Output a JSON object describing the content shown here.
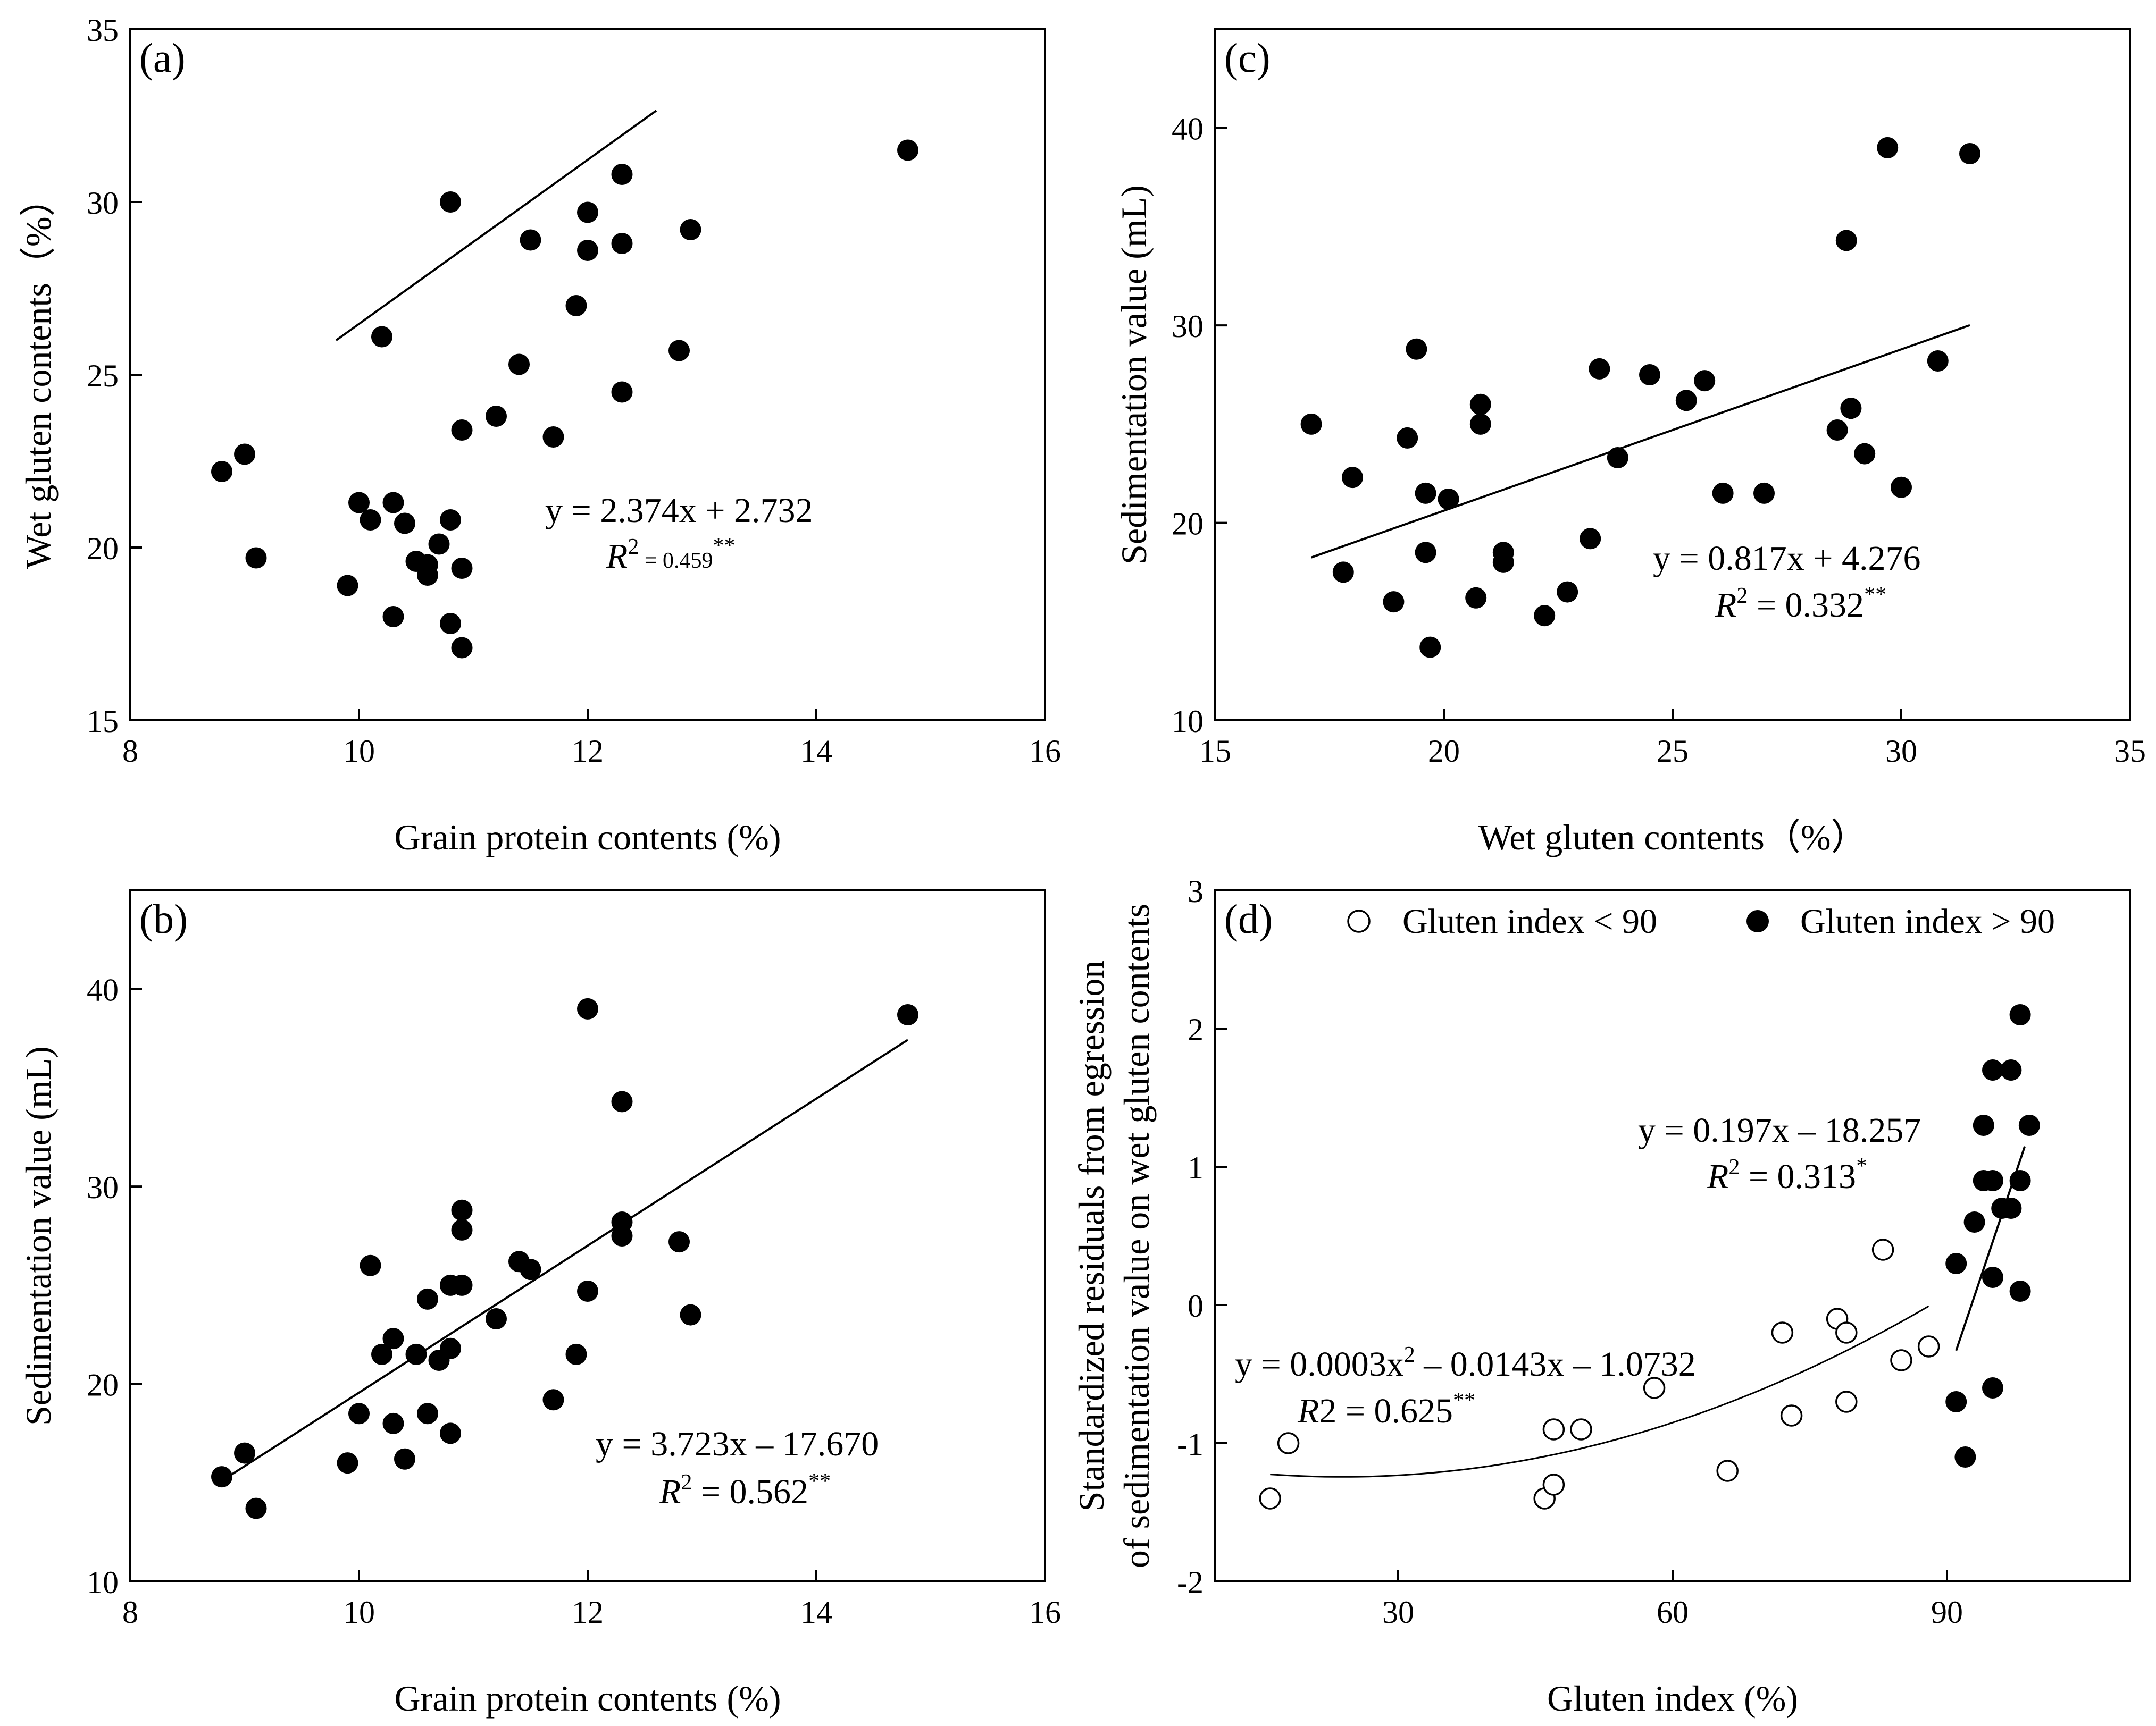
{
  "chart_data": [
    {
      "id": "a",
      "type": "scatter",
      "panel_label": "(a)",
      "xlabel": "Grain protein contents (%)",
      "ylabel": "Wet gluten contents（%）",
      "xlim": [
        8,
        16
      ],
      "ylim": [
        15,
        35
      ],
      "xticks": [
        8,
        10,
        12,
        14,
        16
      ],
      "yticks": [
        15,
        20,
        25,
        30,
        35
      ],
      "equation": "y = 2.374x + 2.732",
      "r2": "R² = 0.459**",
      "r2_main": "2 = 0.459",
      "r2_sig": "**",
      "fit": {
        "slope": 2.374,
        "intercept": 2.732,
        "x_from": 9.8,
        "x_to": 12.6
      },
      "points": [
        {
          "x": 8.8,
          "y": 22.2
        },
        {
          "x": 9.0,
          "y": 22.7
        },
        {
          "x": 9.1,
          "y": 19.7
        },
        {
          "x": 9.9,
          "y": 18.9
        },
        {
          "x": 10.0,
          "y": 21.3
        },
        {
          "x": 10.1,
          "y": 20.8
        },
        {
          "x": 10.2,
          "y": 26.1
        },
        {
          "x": 10.3,
          "y": 21.3
        },
        {
          "x": 10.3,
          "y": 18.0
        },
        {
          "x": 10.4,
          "y": 20.7
        },
        {
          "x": 10.5,
          "y": 19.6
        },
        {
          "x": 10.6,
          "y": 19.2
        },
        {
          "x": 10.6,
          "y": 19.5
        },
        {
          "x": 10.7,
          "y": 20.1
        },
        {
          "x": 10.8,
          "y": 20.8
        },
        {
          "x": 10.8,
          "y": 17.8
        },
        {
          "x": 10.8,
          "y": 30.0
        },
        {
          "x": 10.9,
          "y": 23.4
        },
        {
          "x": 10.9,
          "y": 19.4
        },
        {
          "x": 10.9,
          "y": 17.1
        },
        {
          "x": 11.2,
          "y": 23.8
        },
        {
          "x": 11.4,
          "y": 25.3
        },
        {
          "x": 11.5,
          "y": 28.9
        },
        {
          "x": 11.7,
          "y": 23.2
        },
        {
          "x": 11.9,
          "y": 27.0
        },
        {
          "x": 12.0,
          "y": 28.6
        },
        {
          "x": 12.0,
          "y": 29.7
        },
        {
          "x": 12.3,
          "y": 30.8
        },
        {
          "x": 12.3,
          "y": 28.8
        },
        {
          "x": 12.3,
          "y": 24.5
        },
        {
          "x": 12.8,
          "y": 25.7
        },
        {
          "x": 12.9,
          "y": 29.2
        },
        {
          "x": 14.8,
          "y": 31.5
        }
      ]
    },
    {
      "id": "b",
      "type": "scatter",
      "panel_label": "(b)",
      "xlabel": "Grain protein contents (%)",
      "ylabel": "Sedimentation value (mL)",
      "xlim": [
        8,
        16
      ],
      "ylim": [
        10,
        45
      ],
      "xticks": [
        8,
        10,
        12,
        14,
        16
      ],
      "yticks": [
        10,
        20,
        30,
        40
      ],
      "equation": "y = 3.723x – 17.670",
      "r2": "R² = 0.562**",
      "r2_main": "2 = 0.562",
      "r2_sig": "**",
      "fit": {
        "slope": 3.723,
        "intercept": -17.67,
        "x_from": 8.8,
        "x_to": 14.8
      },
      "points": [
        {
          "x": 8.8,
          "y": 15.3
        },
        {
          "x": 9.0,
          "y": 16.5
        },
        {
          "x": 9.1,
          "y": 13.7
        },
        {
          "x": 9.9,
          "y": 16.0
        },
        {
          "x": 10.0,
          "y": 18.5
        },
        {
          "x": 10.1,
          "y": 26.0
        },
        {
          "x": 10.2,
          "y": 21.5
        },
        {
          "x": 10.3,
          "y": 22.3
        },
        {
          "x": 10.3,
          "y": 18.0
        },
        {
          "x": 10.4,
          "y": 16.2
        },
        {
          "x": 10.5,
          "y": 21.5
        },
        {
          "x": 10.6,
          "y": 24.3
        },
        {
          "x": 10.6,
          "y": 18.5
        },
        {
          "x": 10.7,
          "y": 21.2
        },
        {
          "x": 10.8,
          "y": 25.0
        },
        {
          "x": 10.8,
          "y": 21.8
        },
        {
          "x": 10.8,
          "y": 17.5
        },
        {
          "x": 10.9,
          "y": 28.8
        },
        {
          "x": 10.9,
          "y": 27.8
        },
        {
          "x": 10.9,
          "y": 25.0
        },
        {
          "x": 11.2,
          "y": 23.3
        },
        {
          "x": 11.4,
          "y": 26.2
        },
        {
          "x": 11.5,
          "y": 25.8
        },
        {
          "x": 11.7,
          "y": 19.2
        },
        {
          "x": 11.9,
          "y": 21.5
        },
        {
          "x": 12.0,
          "y": 39.0
        },
        {
          "x": 12.0,
          "y": 24.7
        },
        {
          "x": 12.3,
          "y": 34.3
        },
        {
          "x": 12.3,
          "y": 28.2
        },
        {
          "x": 12.3,
          "y": 27.5
        },
        {
          "x": 12.8,
          "y": 27.2
        },
        {
          "x": 12.9,
          "y": 23.5
        },
        {
          "x": 14.8,
          "y": 38.7
        }
      ]
    },
    {
      "id": "c",
      "type": "scatter",
      "panel_label": "(c)",
      "xlabel": "Wet gluten contents（%）",
      "ylabel": "Sedimentation value (mL)",
      "xlim": [
        15,
        35
      ],
      "ylim": [
        10,
        45
      ],
      "xticks": [
        15,
        20,
        25,
        30,
        35
      ],
      "yticks": [
        10,
        20,
        30,
        40
      ],
      "equation": "y = 0.817x + 4.276",
      "r2": "R² = 0.332**",
      "r2_main": "2 = 0.332",
      "r2_sig": "**",
      "fit": {
        "slope": 0.817,
        "intercept": 4.276,
        "x_from": 17.1,
        "x_to": 31.5
      },
      "points": [
        {
          "x": 17.1,
          "y": 25.0
        },
        {
          "x": 17.8,
          "y": 17.5
        },
        {
          "x": 18.0,
          "y": 22.3
        },
        {
          "x": 18.9,
          "y": 16.0
        },
        {
          "x": 19.2,
          "y": 24.3
        },
        {
          "x": 19.4,
          "y": 28.8
        },
        {
          "x": 19.6,
          "y": 21.5
        },
        {
          "x": 19.6,
          "y": 18.5
        },
        {
          "x": 19.7,
          "y": 13.7
        },
        {
          "x": 20.1,
          "y": 21.2
        },
        {
          "x": 20.7,
          "y": 16.2
        },
        {
          "x": 20.8,
          "y": 26.0
        },
        {
          "x": 20.8,
          "y": 25.0
        },
        {
          "x": 21.3,
          "y": 18.5
        },
        {
          "x": 21.3,
          "y": 18.0
        },
        {
          "x": 22.2,
          "y": 15.3
        },
        {
          "x": 22.7,
          "y": 16.5
        },
        {
          "x": 23.2,
          "y": 19.2
        },
        {
          "x": 23.4,
          "y": 27.8
        },
        {
          "x": 23.8,
          "y": 23.3
        },
        {
          "x": 24.5,
          "y": 27.5
        },
        {
          "x": 25.3,
          "y": 26.2
        },
        {
          "x": 25.7,
          "y": 27.2
        },
        {
          "x": 26.1,
          "y": 21.5
        },
        {
          "x": 27.0,
          "y": 21.5
        },
        {
          "x": 28.6,
          "y": 24.7
        },
        {
          "x": 28.8,
          "y": 34.3
        },
        {
          "x": 28.9,
          "y": 25.8
        },
        {
          "x": 29.2,
          "y": 23.5
        },
        {
          "x": 29.7,
          "y": 39.0
        },
        {
          "x": 30.0,
          "y": 21.8
        },
        {
          "x": 30.8,
          "y": 28.2
        },
        {
          "x": 31.5,
          "y": 38.7
        }
      ]
    },
    {
      "id": "d",
      "type": "scatter",
      "panel_label": "(d)",
      "xlabel": "Gluten index (%)",
      "ylabel_line1": "Standardized residuals from egression",
      "ylabel_line2": "of sedimentation value on wet gluten contents",
      "xlim": [
        10,
        110
      ],
      "ylim": [
        -2,
        3
      ],
      "xticks": [
        30,
        60,
        90
      ],
      "yticks": [
        -2,
        -1,
        0,
        1,
        2,
        3
      ],
      "legend": [
        {
          "label": "Gluten index < 90",
          "marker": "open-circle"
        },
        {
          "label": "Gluten index > 90",
          "marker": "filled-circle"
        }
      ],
      "series": [
        {
          "name": "Gluten index < 90",
          "marker": "open-circle",
          "equation": "y = 0.0003x² – 0.0143x – 1.0732",
          "eq_main": "y = 0.0003x",
          "eq_sup": "2",
          "eq_rest": " – 0.0143x – 1.0732",
          "r2": "R² = 0.625**",
          "r2_main": "2 = 0.625",
          "r2_sig": "**",
          "fit": {
            "type": "quadratic",
            "a": 0.0003,
            "b": -0.0143,
            "c": -1.0732,
            "x_from": 16,
            "x_to": 88
          },
          "points": [
            {
              "x": 16,
              "y": -1.4
            },
            {
              "x": 18,
              "y": -1.0
            },
            {
              "x": 46,
              "y": -1.4
            },
            {
              "x": 47,
              "y": -1.3
            },
            {
              "x": 47,
              "y": -0.9
            },
            {
              "x": 50,
              "y": -0.9
            },
            {
              "x": 58,
              "y": -0.6
            },
            {
              "x": 66,
              "y": -1.2
            },
            {
              "x": 72,
              "y": -0.2
            },
            {
              "x": 73,
              "y": -0.8
            },
            {
              "x": 78,
              "y": -0.1
            },
            {
              "x": 79,
              "y": -0.2
            },
            {
              "x": 79,
              "y": -0.7
            },
            {
              "x": 83,
              "y": 0.4
            },
            {
              "x": 85,
              "y": -0.4
            },
            {
              "x": 88,
              "y": -0.3
            }
          ]
        },
        {
          "name": "Gluten index > 90",
          "marker": "filled-circle",
          "equation": "y = 0.197x – 18.257",
          "r2": "R² = 0.313*",
          "r2_main": "2 = 0.313",
          "r2_sig": "*",
          "fit": {
            "type": "linear",
            "slope": 0.197,
            "intercept": -18.257,
            "x_from": 91,
            "x_to": 98.5
          },
          "points": [
            {
              "x": 91,
              "y": 0.3
            },
            {
              "x": 91,
              "y": -0.7
            },
            {
              "x": 92,
              "y": -1.1
            },
            {
              "x": 93,
              "y": 0.6
            },
            {
              "x": 94,
              "y": 1.3
            },
            {
              "x": 94,
              "y": 0.9
            },
            {
              "x": 95,
              "y": 1.7
            },
            {
              "x": 95,
              "y": 0.9
            },
            {
              "x": 95,
              "y": 0.2
            },
            {
              "x": 95,
              "y": -0.6
            },
            {
              "x": 96,
              "y": 0.7
            },
            {
              "x": 97,
              "y": 1.7
            },
            {
              "x": 97,
              "y": 0.7
            },
            {
              "x": 98,
              "y": 2.1
            },
            {
              "x": 98,
              "y": 0.9
            },
            {
              "x": 98,
              "y": 0.1
            },
            {
              "x": 99,
              "y": 1.3
            }
          ]
        }
      ]
    }
  ]
}
